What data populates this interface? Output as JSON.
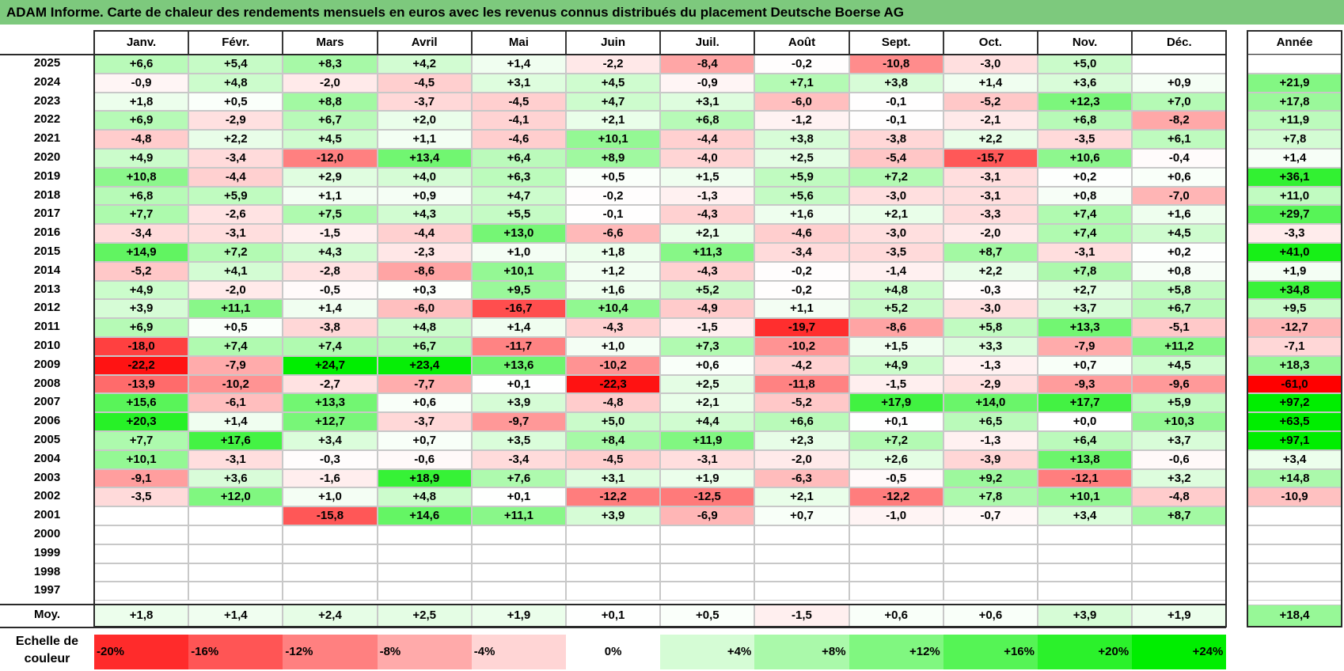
{
  "title": "ADAM Informe. Carte de chaleur des rendements mensuels en euros avec les revenus connus distribués du placement Deutsche Boerse AG",
  "colors": {
    "title_bg": "#7dc97d",
    "neg_max": "#ff0000",
    "pos_max": "#00ee00",
    "neutral": "#ffffff"
  },
  "chart_data": {
    "type": "heatmap",
    "months": [
      "Janv.",
      "Févr.",
      "Mars",
      "Avril",
      "Mai",
      "Juin",
      "Juil.",
      "Août",
      "Sept.",
      "Oct.",
      "Nov.",
      "Déc."
    ],
    "year_header": "Année",
    "rows": [
      {
        "year": "2025",
        "values": [
          "+6,6",
          "+5,4",
          "+8,3",
          "+4,2",
          "+1,4",
          "-2,2",
          "-8,4",
          "-0,2",
          "-10,8",
          "-3,0",
          "+5,0",
          ""
        ],
        "annual": ""
      },
      {
        "year": "2024",
        "values": [
          "-0,9",
          "+4,8",
          "-2,0",
          "-4,5",
          "+3,1",
          "+4,5",
          "-0,9",
          "+7,1",
          "+3,8",
          "+1,4",
          "+3,6",
          "+0,9"
        ],
        "annual": "+21,9"
      },
      {
        "year": "2023",
        "values": [
          "+1,8",
          "+0,5",
          "+8,8",
          "-3,7",
          "-4,5",
          "+4,7",
          "+3,1",
          "-6,0",
          "-0,1",
          "-5,2",
          "+12,3",
          "+7,0"
        ],
        "annual": "+17,8"
      },
      {
        "year": "2022",
        "values": [
          "+6,9",
          "-2,9",
          "+6,7",
          "+2,0",
          "-4,1",
          "+2,1",
          "+6,8",
          "-1,2",
          "-0,1",
          "-2,1",
          "+6,8",
          "-8,2"
        ],
        "annual": "+11,9"
      },
      {
        "year": "2021",
        "values": [
          "-4,8",
          "+2,2",
          "+4,5",
          "+1,1",
          "-4,6",
          "+10,1",
          "-4,4",
          "+3,8",
          "-3,8",
          "+2,2",
          "-3,5",
          "+6,1"
        ],
        "annual": "+7,8"
      },
      {
        "year": "2020",
        "values": [
          "+4,9",
          "-3,4",
          "-12,0",
          "+13,4",
          "+6,4",
          "+8,9",
          "-4,0",
          "+2,5",
          "-5,4",
          "-15,7",
          "+10,6",
          "-0,4"
        ],
        "annual": "+1,4"
      },
      {
        "year": "2019",
        "values": [
          "+10,8",
          "-4,4",
          "+2,9",
          "+4,0",
          "+6,3",
          "+0,5",
          "+1,5",
          "+5,9",
          "+7,2",
          "-3,1",
          "+0,2",
          "+0,6"
        ],
        "annual": "+36,1"
      },
      {
        "year": "2018",
        "values": [
          "+6,8",
          "+5,9",
          "+1,1",
          "+0,9",
          "+4,7",
          "-0,2",
          "-1,3",
          "+5,6",
          "-3,0",
          "-3,1",
          "+0,8",
          "-7,0"
        ],
        "annual": "+11,0"
      },
      {
        "year": "2017",
        "values": [
          "+7,7",
          "-2,6",
          "+7,5",
          "+4,3",
          "+5,5",
          "-0,1",
          "-4,3",
          "+1,6",
          "+2,1",
          "-3,3",
          "+7,4",
          "+1,6"
        ],
        "annual": "+29,7"
      },
      {
        "year": "2016",
        "values": [
          "-3,4",
          "-3,1",
          "-1,5",
          "-4,4",
          "+13,0",
          "-6,6",
          "+2,1",
          "-4,6",
          "-3,0",
          "-2,0",
          "+7,4",
          "+4,5"
        ],
        "annual": "-3,3"
      },
      {
        "year": "2015",
        "values": [
          "+14,9",
          "+7,2",
          "+4,3",
          "-2,3",
          "+1,0",
          "+1,8",
          "+11,3",
          "-3,4",
          "-3,5",
          "+8,7",
          "-3,1",
          "+0,2"
        ],
        "annual": "+41,0"
      },
      {
        "year": "2014",
        "values": [
          "-5,2",
          "+4,1",
          "-2,8",
          "-8,6",
          "+10,1",
          "+1,2",
          "-4,3",
          "-0,2",
          "-1,4",
          "+2,2",
          "+7,8",
          "+0,8"
        ],
        "annual": "+1,9"
      },
      {
        "year": "2013",
        "values": [
          "+4,9",
          "-2,0",
          "-0,5",
          "+0,3",
          "+9,5",
          "+1,6",
          "+5,2",
          "-0,2",
          "+4,8",
          "-0,3",
          "+2,7",
          "+5,8"
        ],
        "annual": "+34,8"
      },
      {
        "year": "2012",
        "values": [
          "+3,9",
          "+11,1",
          "+1,4",
          "-6,0",
          "-16,7",
          "+10,4",
          "-4,9",
          "+1,1",
          "+5,2",
          "-3,0",
          "+3,7",
          "+6,7"
        ],
        "annual": "+9,5"
      },
      {
        "year": "2011",
        "values": [
          "+6,9",
          "+0,5",
          "-3,8",
          "+4,8",
          "+1,4",
          "-4,3",
          "-1,5",
          "-19,7",
          "-8,6",
          "+5,8",
          "+13,3",
          "-5,1"
        ],
        "annual": "-12,7"
      },
      {
        "year": "2010",
        "values": [
          "-18,0",
          "+7,4",
          "+7,4",
          "+6,7",
          "-11,7",
          "+1,0",
          "+7,3",
          "-10,2",
          "+1,5",
          "+3,3",
          "-7,9",
          "+11,2"
        ],
        "annual": "-7,1"
      },
      {
        "year": "2009",
        "values": [
          "-22,2",
          "-7,9",
          "+24,7",
          "+23,4",
          "+13,6",
          "-10,2",
          "+0,6",
          "-4,2",
          "+4,9",
          "-1,3",
          "+0,7",
          "+4,5"
        ],
        "annual": "+18,3"
      },
      {
        "year": "2008",
        "values": [
          "-13,9",
          "-10,2",
          "-2,7",
          "-7,7",
          "+0,1",
          "-22,3",
          "+2,5",
          "-11,8",
          "-1,5",
          "-2,9",
          "-9,3",
          "-9,6"
        ],
        "annual": "-61,0"
      },
      {
        "year": "2007",
        "values": [
          "+15,6",
          "-6,1",
          "+13,3",
          "+0,6",
          "+3,9",
          "-4,8",
          "+2,1",
          "-5,2",
          "+17,9",
          "+14,0",
          "+17,7",
          "+5,9"
        ],
        "annual": "+97,2"
      },
      {
        "year": "2006",
        "values": [
          "+20,3",
          "+1,4",
          "+12,7",
          "-3,7",
          "-9,7",
          "+5,0",
          "+4,4",
          "+6,6",
          "+0,1",
          "+6,5",
          "+0,0",
          "+10,3"
        ],
        "annual": "+63,5"
      },
      {
        "year": "2005",
        "values": [
          "+7,7",
          "+17,6",
          "+3,4",
          "+0,7",
          "+3,5",
          "+8,4",
          "+11,9",
          "+2,3",
          "+7,2",
          "-1,3",
          "+6,4",
          "+3,7"
        ],
        "annual": "+97,1"
      },
      {
        "year": "2004",
        "values": [
          "+10,1",
          "-3,1",
          "-0,3",
          "-0,6",
          "-3,4",
          "-4,5",
          "-3,1",
          "-2,0",
          "+2,6",
          "-3,9",
          "+13,8",
          "-0,6"
        ],
        "annual": "+3,4"
      },
      {
        "year": "2003",
        "values": [
          "-9,1",
          "+3,6",
          "-1,6",
          "+18,9",
          "+7,6",
          "+3,1",
          "+1,9",
          "-6,3",
          "-0,5",
          "+9,2",
          "-12,1",
          "+3,2"
        ],
        "annual": "+14,8"
      },
      {
        "year": "2002",
        "values": [
          "-3,5",
          "+12,0",
          "+1,0",
          "+4,8",
          "+0,1",
          "-12,2",
          "-12,5",
          "+2,1",
          "-12,2",
          "+7,8",
          "+10,1",
          "-4,8"
        ],
        "annual": "-10,9"
      },
      {
        "year": "2001",
        "values": [
          "",
          "",
          "-15,8",
          "+14,6",
          "+11,1",
          "+3,9",
          "-6,9",
          "+0,7",
          "-1,0",
          "-0,7",
          "+3,4",
          "+8,7"
        ],
        "annual": ""
      },
      {
        "year": "2000",
        "values": [
          "",
          "",
          "",
          "",
          "",
          "",
          "",
          "",
          "",
          "",
          "",
          ""
        ],
        "annual": ""
      },
      {
        "year": "1999",
        "values": [
          "",
          "",
          "",
          "",
          "",
          "",
          "",
          "",
          "",
          "",
          "",
          ""
        ],
        "annual": ""
      },
      {
        "year": "1998",
        "values": [
          "",
          "",
          "",
          "",
          "",
          "",
          "",
          "",
          "",
          "",
          "",
          ""
        ],
        "annual": ""
      },
      {
        "year": "1997",
        "values": [
          "",
          "",
          "",
          "",
          "",
          "",
          "",
          "",
          "",
          "",
          "",
          ""
        ],
        "annual": ""
      }
    ],
    "average": {
      "label": "Moy.",
      "values": [
        "+1,8",
        "+1,4",
        "+2,4",
        "+2,5",
        "+1,9",
        "+0,1",
        "+0,5",
        "-1,5",
        "+0,6",
        "+0,6",
        "+3,9",
        "+1,9"
      ],
      "annual": "+18,4"
    },
    "scale": {
      "title_line1": "Echelle de",
      "title_line2": "couleur",
      "labels": [
        "-20%",
        "-16%",
        "-12%",
        "-8%",
        "-4%",
        "0%",
        "+4%",
        "+8%",
        "+12%",
        "+16%",
        "+20%",
        "+24%"
      ],
      "values": [
        -20,
        -16,
        -12,
        -8,
        -4,
        0,
        4,
        8,
        12,
        16,
        20,
        24
      ]
    }
  }
}
